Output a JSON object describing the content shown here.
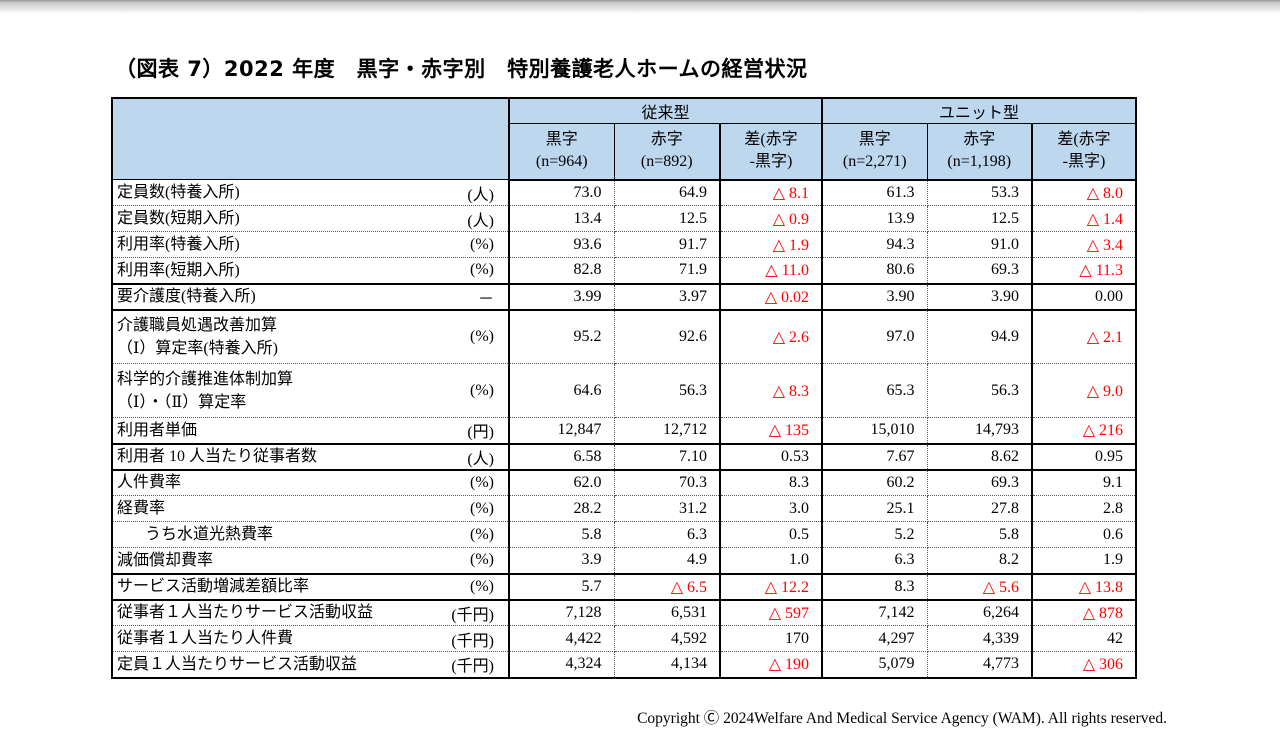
{
  "page": {
    "title": "（図表 7）2022 年度　黒字・赤字別　特別養護老人ホームの経営状況",
    "footer": "Copyright Ⓒ 2024Welfare And Medical Service Agency (WAM). All rights reserved."
  },
  "colors": {
    "header_bg": "#bdd7ee",
    "negative_red": "#ff0000",
    "border": "#000000"
  },
  "table": {
    "group_headers": [
      "従来型",
      "ユニット型"
    ],
    "sub_headers": [
      {
        "line1": "黒字",
        "line2": "(n=964)"
      },
      {
        "line1": "赤字",
        "line2": "(n=892)"
      },
      {
        "line1": "差(赤字",
        "line2": "-黒字)"
      },
      {
        "line1": "黒字",
        "line2": "(n=2,271)"
      },
      {
        "line1": "赤字",
        "line2": "(n=1,198)"
      },
      {
        "line1": "差(赤字",
        "line2": "-黒字)"
      }
    ],
    "rows": [
      {
        "label": "定員数(特養入所)",
        "unit": "(人)",
        "values": [
          "73.0",
          "64.9",
          "△ 8.1",
          "61.3",
          "53.3",
          "△ 8.0"
        ],
        "sep": "dotted"
      },
      {
        "label": "定員数(短期入所)",
        "unit": "(人)",
        "values": [
          "13.4",
          "12.5",
          "△ 0.9",
          "13.9",
          "12.5",
          "△ 1.4"
        ],
        "sep": "dotted"
      },
      {
        "label": "利用率(特養入所)",
        "unit": "(%)",
        "values": [
          "93.6",
          "91.7",
          "△ 1.9",
          "94.3",
          "91.0",
          "△ 3.4"
        ],
        "sep": "dotted"
      },
      {
        "label": "利用率(短期入所)",
        "unit": "(%)",
        "values": [
          "82.8",
          "71.9",
          "△ 11.0",
          "80.6",
          "69.3",
          "△ 11.3"
        ],
        "sep": "solid"
      },
      {
        "label": "要介護度(特養入所)",
        "unit": "－",
        "values": [
          "3.99",
          "3.97",
          "△ 0.02",
          "3.90",
          "3.90",
          "0.00"
        ],
        "sep": "solid"
      },
      {
        "label": "介護職員処遇改善加算\n（Ⅰ）算定率(特養入所)",
        "unit": "(%)",
        "values": [
          "95.2",
          "92.6",
          "△ 2.6",
          "97.0",
          "94.9",
          "△ 2.1"
        ],
        "sep": "dotted",
        "tall": true
      },
      {
        "label": "科学的介護推進体制加算\n（Ⅰ）・（Ⅱ）算定率",
        "unit": "(%)",
        "values": [
          "64.6",
          "56.3",
          "△ 8.3",
          "65.3",
          "56.3",
          "△ 9.0"
        ],
        "sep": "dotted",
        "tall": true
      },
      {
        "label": "利用者単価",
        "unit": "(円)",
        "values": [
          "12,847",
          "12,712",
          "△ 135",
          "15,010",
          "14,793",
          "△ 216"
        ],
        "sep": "solid"
      },
      {
        "label": "利用者 10 人当たり従事者数",
        "unit": "(人)",
        "values": [
          "6.58",
          "7.10",
          "0.53",
          "7.67",
          "8.62",
          "0.95"
        ],
        "sep": "solid"
      },
      {
        "label": "人件費率",
        "unit": "(%)",
        "values": [
          "62.0",
          "70.3",
          "8.3",
          "60.2",
          "69.3",
          "9.1"
        ],
        "sep": "dotted"
      },
      {
        "label": "経費率",
        "unit": "(%)",
        "values": [
          "28.2",
          "31.2",
          "3.0",
          "25.1",
          "27.8",
          "2.8"
        ],
        "sep": "dotted"
      },
      {
        "label": "うち水道光熱費率",
        "unit": "(%)",
        "values": [
          "5.8",
          "6.3",
          "0.5",
          "5.2",
          "5.8",
          "0.6"
        ],
        "sep": "dotted",
        "indent": true
      },
      {
        "label": "減価償却費率",
        "unit": "(%)",
        "values": [
          "3.9",
          "4.9",
          "1.0",
          "6.3",
          "8.2",
          "1.9"
        ],
        "sep": "solid"
      },
      {
        "label": "サービス活動増減差額比率",
        "unit": "(%)",
        "values": [
          "5.7",
          "△ 6.5",
          "△ 12.2",
          "8.3",
          "△ 5.6",
          "△ 13.8"
        ],
        "sep": "solid"
      },
      {
        "label": "従事者１人当たりサービス活動収益",
        "unit": "(千円)",
        "values": [
          "7,128",
          "6,531",
          "△ 597",
          "7,142",
          "6,264",
          "△ 878"
        ],
        "sep": "dotted"
      },
      {
        "label": "従事者１人当たり人件費",
        "unit": "(千円)",
        "values": [
          "4,422",
          "4,592",
          "170",
          "4,297",
          "4,339",
          "42"
        ],
        "sep": "dotted"
      },
      {
        "label": "定員１人当たりサービス活動収益",
        "unit": "(千円)",
        "values": [
          "4,324",
          "4,134",
          "△ 190",
          "5,079",
          "4,773",
          "△ 306"
        ],
        "sep": "solid"
      }
    ]
  }
}
